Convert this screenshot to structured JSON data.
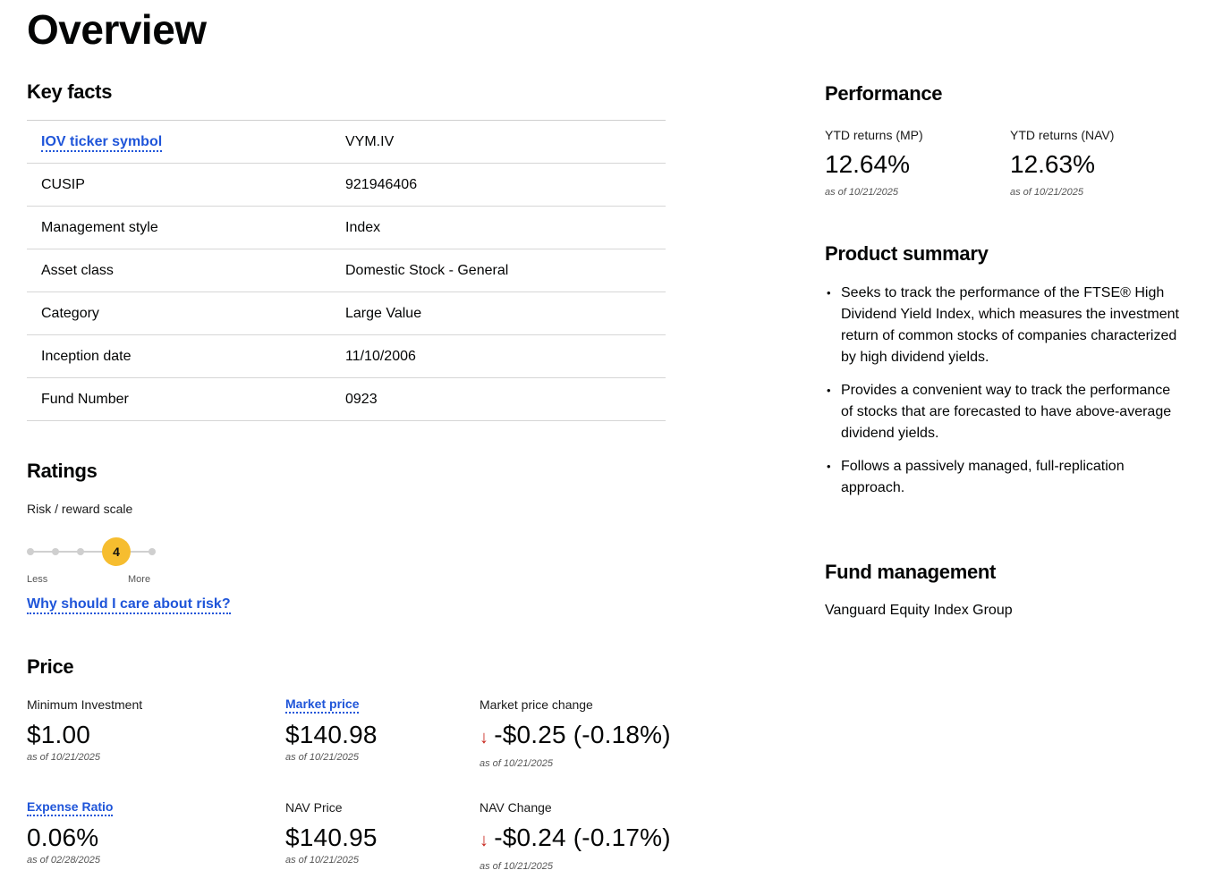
{
  "page": {
    "title": "Overview"
  },
  "key_facts": {
    "heading": "Key facts",
    "rows": [
      {
        "label": "IOV ticker symbol",
        "value": "VYM.IV"
      },
      {
        "label": "CUSIP",
        "value": "921946406"
      },
      {
        "label": "Management style",
        "value": "Index"
      },
      {
        "label": "Asset class",
        "value": "Domestic Stock - General"
      },
      {
        "label": "Category",
        "value": "Large Value"
      },
      {
        "label": "Inception date",
        "value": "11/10/2006"
      },
      {
        "label": "Fund Number",
        "value": "0923"
      }
    ]
  },
  "ratings": {
    "heading": "Ratings",
    "scale_label": "Risk / reward scale",
    "risk_level": "4",
    "risk_max": 5,
    "less_label": "Less",
    "more_label": "More",
    "risk_link": "Why should I care about risk?"
  },
  "price": {
    "heading": "Price",
    "min_investment": {
      "label": "Minimum Investment",
      "value": "$1.00",
      "asof": "as of 10/21/2025"
    },
    "market_price": {
      "label": "Market price",
      "value": "$140.98",
      "asof": "as of 10/21/2025"
    },
    "market_price_change": {
      "label": "Market price change",
      "arrow": "↓",
      "value": "-$0.25 (-0.18%)",
      "asof": "as of 10/21/2025"
    },
    "expense_ratio": {
      "label": "Expense Ratio",
      "value": "0.06%",
      "asof": "as of 02/28/2025"
    },
    "nav_price": {
      "label": "NAV Price",
      "value": "$140.95",
      "asof": "as of 10/21/2025"
    },
    "nav_change": {
      "label": "NAV Change",
      "arrow": "↓",
      "value": "-$0.24 (-0.17%)",
      "asof": "as of 10/21/2025"
    }
  },
  "performance": {
    "heading": "Performance",
    "ytd_mp": {
      "label": "YTD returns (MP)",
      "value": "12.64%",
      "asof": "as of 10/21/2025"
    },
    "ytd_nav": {
      "label": "YTD returns (NAV)",
      "value": "12.63%",
      "asof": "as of 10/21/2025"
    }
  },
  "product_summary": {
    "heading": "Product summary",
    "bullets": [
      "Seeks to track the performance of the FTSE® High Dividend Yield Index, which measures the investment return of common stocks of companies characterized by high dividend yields.",
      "Provides a convenient way to track the performance of stocks that are forecasted to have above-average dividend yields.",
      "Follows a passively managed, full-replication approach."
    ]
  },
  "fund_management": {
    "heading": "Fund management",
    "value": "Vanguard Equity Index Group"
  },
  "colors": {
    "link": "#1f55d9",
    "risk_active": "#f6bd2f",
    "negative": "#c8261c"
  }
}
